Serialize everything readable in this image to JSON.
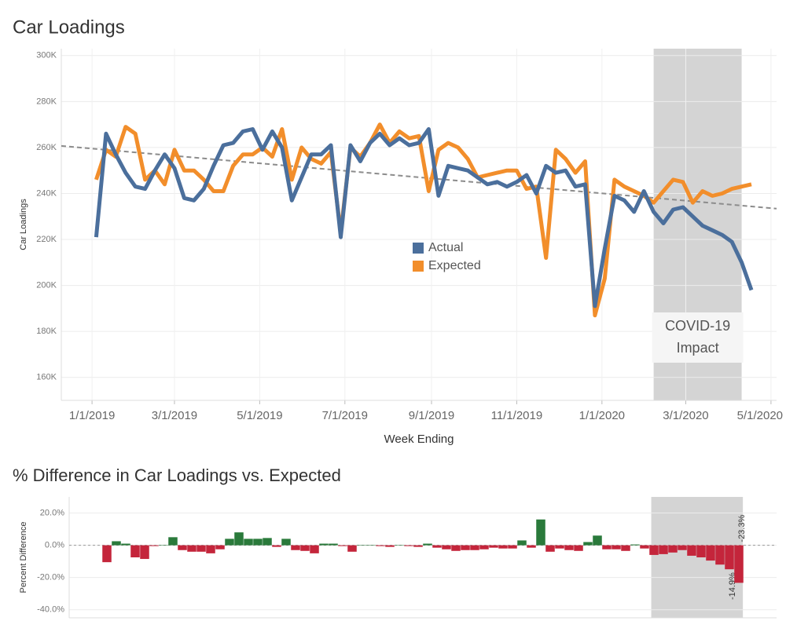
{
  "chart_data": [
    {
      "type": "line",
      "title": "Car Loadings",
      "x_label": "Week Ending",
      "y_label": "Car Loadings",
      "x": [
        "2019-01-04",
        "2019-01-11",
        "2019-01-18",
        "2019-01-25",
        "2019-02-01",
        "2019-02-08",
        "2019-02-15",
        "2019-02-22",
        "2019-03-01",
        "2019-03-08",
        "2019-03-15",
        "2019-03-22",
        "2019-03-29",
        "2019-04-05",
        "2019-04-12",
        "2019-04-19",
        "2019-04-26",
        "2019-05-03",
        "2019-05-10",
        "2019-05-17",
        "2019-05-24",
        "2019-05-31",
        "2019-06-07",
        "2019-06-14",
        "2019-06-21",
        "2019-06-28",
        "2019-07-05",
        "2019-07-12",
        "2019-07-19",
        "2019-07-26",
        "2019-08-02",
        "2019-08-09",
        "2019-08-16",
        "2019-08-23",
        "2019-08-30",
        "2019-09-06",
        "2019-09-13",
        "2019-09-20",
        "2019-09-27",
        "2019-10-04",
        "2019-10-11",
        "2019-10-18",
        "2019-10-25",
        "2019-11-01",
        "2019-11-08",
        "2019-11-15",
        "2019-11-22",
        "2019-11-29",
        "2019-12-06",
        "2019-12-13",
        "2019-12-20",
        "2019-12-27",
        "2020-01-03",
        "2020-01-10",
        "2020-01-17",
        "2020-01-24",
        "2020-01-31",
        "2020-02-07",
        "2020-02-14",
        "2020-02-21",
        "2020-02-28",
        "2020-03-06",
        "2020-03-13",
        "2020-03-20",
        "2020-03-27",
        "2020-04-03",
        "2020-04-10",
        "2020-04-17"
      ],
      "series": [
        {
          "name": "Actual",
          "color": "#4b6f9c",
          "values": [
            221000,
            266000,
            257000,
            249000,
            243000,
            242000,
            250000,
            257000,
            251000,
            238000,
            237000,
            242000,
            252000,
            261000,
            262000,
            267000,
            268000,
            259000,
            267000,
            260000,
            237000,
            247000,
            257000,
            257000,
            261000,
            221000,
            261000,
            254000,
            262000,
            266000,
            261000,
            264000,
            261000,
            262000,
            268000,
            239000,
            252000,
            251000,
            250000,
            247000,
            244000,
            245000,
            243000,
            245000,
            248000,
            240000,
            252000,
            249000,
            250000,
            243000,
            244000,
            191000,
            216000,
            239000,
            237000,
            232000,
            241000,
            232000,
            227000,
            233000,
            234000,
            230000,
            226000,
            224000,
            222000,
            219000,
            210000,
            198000
          ]
        },
        {
          "name": "Expected",
          "color": "#f28e2b",
          "values": [
            246000,
            259000,
            256000,
            269000,
            266000,
            246000,
            250000,
            244000,
            259000,
            250000,
            250000,
            246000,
            241000,
            241000,
            252000,
            257000,
            257000,
            260000,
            256000,
            268000,
            246000,
            260000,
            255000,
            253000,
            258000,
            223000,
            260000,
            256000,
            262000,
            270000,
            262000,
            267000,
            264000,
            265000,
            241000,
            259000,
            262000,
            260000,
            255000,
            247000,
            248000,
            249000,
            250000,
            250000,
            242000,
            243000,
            212000,
            259000,
            255000,
            249000,
            254000,
            187000,
            203000,
            246000,
            243000,
            241000,
            239000,
            236000,
            241000,
            246000,
            245000,
            236000,
            241000,
            239000,
            240000,
            242000,
            243000,
            244000
          ]
        }
      ],
      "trend_line": {
        "x": [
          "2018-12-10",
          "2020-05-05"
        ],
        "values": [
          260700,
          233400
        ],
        "color": "#8c8c8c"
      },
      "shade": [
        "2020-02-07",
        "2020-04-10"
      ],
      "annotation": [
        "COVID-19",
        "Impact"
      ],
      "xlim": [
        "2018-12-10",
        "2020-05-05"
      ],
      "xticks": [
        {
          "value": "2019-01-01",
          "label": "1/1/2019"
        },
        {
          "value": "2019-03-01",
          "label": "3/1/2019"
        },
        {
          "value": "2019-05-01",
          "label": "5/1/2019"
        },
        {
          "value": "2019-07-01",
          "label": "7/1/2019"
        },
        {
          "value": "2019-09-01",
          "label": "9/1/2019"
        },
        {
          "value": "2019-11-01",
          "label": "11/1/2019"
        },
        {
          "value": "2020-01-01",
          "label": "1/1/2020"
        },
        {
          "value": "2020-03-01",
          "label": "3/1/2020"
        },
        {
          "value": "2020-05-01",
          "label": "5/1/2020"
        }
      ],
      "ylim": [
        150000,
        303000
      ],
      "yticks": [
        {
          "value": 160000,
          "label": "160K"
        },
        {
          "value": 180000,
          "label": "180K"
        },
        {
          "value": 200000,
          "label": "200K"
        },
        {
          "value": 220000,
          "label": "220K"
        },
        {
          "value": 240000,
          "label": "240K"
        },
        {
          "value": 260000,
          "label": "260K"
        },
        {
          "value": 280000,
          "label": "280K"
        },
        {
          "value": 300000,
          "label": "300K"
        }
      ],
      "grid": true,
      "legend": "center"
    },
    {
      "type": "bar",
      "title": "% Difference in Car Loadings vs. Expected",
      "y_label": "Percent Difference",
      "x": [
        "2019-01-04",
        "2019-01-11",
        "2019-01-18",
        "2019-01-25",
        "2019-02-01",
        "2019-02-08",
        "2019-02-15",
        "2019-02-22",
        "2019-03-01",
        "2019-03-08",
        "2019-03-15",
        "2019-03-22",
        "2019-03-29",
        "2019-04-05",
        "2019-04-12",
        "2019-04-19",
        "2019-04-26",
        "2019-05-03",
        "2019-05-10",
        "2019-05-17",
        "2019-05-24",
        "2019-05-31",
        "2019-06-07",
        "2019-06-14",
        "2019-06-21",
        "2019-06-28",
        "2019-07-05",
        "2019-07-12",
        "2019-07-19",
        "2019-07-26",
        "2019-08-02",
        "2019-08-09",
        "2019-08-16",
        "2019-08-23",
        "2019-08-30",
        "2019-09-06",
        "2019-09-13",
        "2019-09-20",
        "2019-09-27",
        "2019-10-04",
        "2019-10-11",
        "2019-10-18",
        "2019-10-25",
        "2019-11-01",
        "2019-11-08",
        "2019-11-15",
        "2019-11-22",
        "2019-11-29",
        "2019-12-06",
        "2019-12-13",
        "2019-12-20",
        "2019-12-27",
        "2020-01-03",
        "2020-01-10",
        "2020-01-17",
        "2020-01-24",
        "2020-01-31",
        "2020-02-07",
        "2020-02-14",
        "2020-02-21",
        "2020-02-28",
        "2020-03-06",
        "2020-03-13",
        "2020-03-20",
        "2020-03-27",
        "2020-04-03",
        "2020-04-10",
        "2020-04-17"
      ],
      "values": [
        -10.5,
        2.5,
        1,
        -7.5,
        -8.5,
        -0.5,
        0.2,
        5,
        -3,
        -4,
        -4,
        -5,
        -2.5,
        4,
        8,
        4,
        4,
        4.5,
        -1,
        4,
        -3,
        -3.5,
        -5,
        1,
        1,
        -0.5,
        -4,
        0.1,
        0.1,
        -0.5,
        -1,
        0.2,
        -0.5,
        -1,
        1,
        -1.5,
        -2.5,
        -3.5,
        -3,
        -3,
        -2.5,
        -1.5,
        -2,
        -2,
        3,
        -1.5,
        16,
        -4,
        -2,
        -3,
        -3.5,
        2,
        6,
        -2.5,
        -2.5,
        -3.5,
        0.5,
        -2,
        -6,
        -5.5,
        -4.5,
        -3,
        -6.5,
        -7.5,
        -9.5,
        -12,
        -14.9,
        -23.3
      ],
      "value_labels": [
        null,
        null,
        null,
        null,
        null,
        null,
        null,
        null,
        null,
        null,
        null,
        null,
        null,
        null,
        null,
        null,
        null,
        null,
        null,
        null,
        null,
        null,
        null,
        null,
        null,
        null,
        null,
        null,
        null,
        null,
        null,
        null,
        null,
        null,
        null,
        null,
        null,
        null,
        null,
        null,
        null,
        null,
        null,
        null,
        null,
        null,
        null,
        null,
        null,
        null,
        null,
        null,
        null,
        null,
        null,
        null,
        null,
        null,
        null,
        null,
        null,
        null,
        null,
        null,
        null,
        null,
        "-14.9%",
        "-23.3%"
      ],
      "colors": {
        "positive": "#2a7a3b",
        "negative": "#c4253b"
      },
      "shade": [
        "2020-02-12",
        "2020-04-20"
      ],
      "xlim": [
        "2018-12-07",
        "2020-05-15"
      ],
      "ylim": [
        -45,
        30
      ],
      "yticks": [
        {
          "value": 20,
          "label": "20.0%"
        },
        {
          "value": 0,
          "label": "0.0%"
        },
        {
          "value": -20,
          "label": "-20.0%"
        },
        {
          "value": -40,
          "label": "-40.0%"
        }
      ],
      "grid": true
    }
  ]
}
